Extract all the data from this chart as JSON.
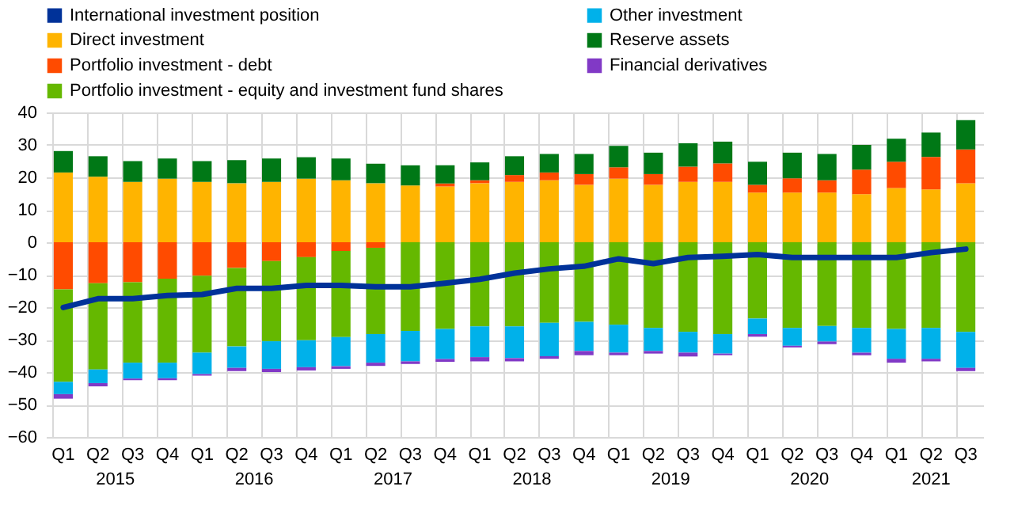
{
  "chart_data": {
    "type": "bar",
    "stacked": true,
    "categories": [
      "Q1",
      "Q2",
      "Q3",
      "Q4",
      "Q1",
      "Q2",
      "Q3",
      "Q4",
      "Q1",
      "Q2",
      "Q3",
      "Q4",
      "Q1",
      "Q2",
      "Q3",
      "Q4",
      "Q1",
      "Q2",
      "Q3",
      "Q4",
      "Q1",
      "Q2",
      "Q3",
      "Q4",
      "Q1",
      "Q2",
      "Q3"
    ],
    "annotations": [
      "2015",
      "2016",
      "2017",
      "2018",
      "2019",
      "2020",
      "2021"
    ],
    "ylim": [
      -60,
      40
    ],
    "yticks": [
      -60,
      -50,
      -40,
      -30,
      -20,
      -10,
      0,
      10,
      20,
      30,
      40
    ],
    "grid": true,
    "legend": "top left",
    "series": [
      {
        "name": "International investment position",
        "type": "line",
        "color": "#003299",
        "values": [
          -20.1,
          -17.4,
          -17.4,
          -16.4,
          -16.1,
          -14.2,
          -14.2,
          -13.3,
          -13.3,
          -13.7,
          -13.7,
          -12.6,
          -11.4,
          -9.5,
          -8.2,
          -7.4,
          -5.1,
          -6.6,
          -4.7,
          -4.3,
          -3.8,
          -4.7,
          -4.7,
          -4.7,
          -4.7,
          -3.2,
          -2.1
        ]
      },
      {
        "name": "Direct investment",
        "color": "#ffb400",
        "values": [
          21.5,
          20.2,
          18.6,
          19.6,
          18.6,
          18.2,
          18.6,
          19.6,
          19.1,
          18.2,
          17.5,
          17.2,
          18.2,
          18.6,
          19.1,
          17.7,
          19.6,
          17.7,
          18.6,
          18.6,
          15.3,
          15.3,
          15.3,
          14.8,
          16.7,
          16.3,
          18.2
        ]
      },
      {
        "name": "Portfolio investment - debt",
        "color": "#ff4b00",
        "values": [
          -14.5,
          -12.6,
          -12.3,
          -11.2,
          -10.3,
          -7.9,
          -5.8,
          -4.6,
          -2.7,
          -1.7,
          0,
          0.9,
          0.9,
          2.1,
          2.4,
          3.3,
          3.5,
          3.3,
          4.7,
          5.7,
          2.4,
          4.4,
          3.8,
          7.6,
          8.1,
          10.0,
          10.4
        ]
      },
      {
        "name": "Portfolio investment - equity and investment fund shares",
        "color": "#65b800",
        "values": [
          -28.5,
          -26.6,
          -24.8,
          -25.9,
          -23.7,
          -24.2,
          -24.7,
          -25.6,
          -26.5,
          -26.6,
          -27.3,
          -26.7,
          -25.9,
          -25.9,
          -24.8,
          -24.5,
          -25.4,
          -26.4,
          -27.6,
          -28.3,
          -23.5,
          -26.4,
          -25.8,
          -26.4,
          -26.7,
          -26.4,
          -27.6
        ]
      },
      {
        "name": "Other investment",
        "color": "#00b1ea",
        "values": [
          -3.8,
          -4.2,
          -4.9,
          -4.8,
          -6.6,
          -6.6,
          -8.5,
          -8.3,
          -9.0,
          -8.8,
          -9.4,
          -9.3,
          -9.5,
          -9.8,
          -10.3,
          -9.0,
          -8.6,
          -7.1,
          -6.4,
          -6.0,
          -4.8,
          -5.5,
          -4.8,
          -7.6,
          -9.2,
          -9.5,
          -11.1
        ]
      },
      {
        "name": "Reserve assets",
        "color": "#007816",
        "values": [
          6.6,
          6.3,
          6.4,
          6.2,
          6.4,
          7.1,
          7.2,
          6.6,
          6.7,
          6.0,
          6.2,
          5.6,
          5.5,
          5.8,
          5.7,
          6.2,
          6.6,
          6.6,
          7.2,
          6.7,
          7.1,
          7.9,
          8.1,
          7.6,
          7.1,
          7.5,
          9.0
        ]
      },
      {
        "name": "Financial derivatives",
        "color": "#8139c6",
        "values": [
          -1.4,
          -1.0,
          -0.5,
          -0.6,
          -0.5,
          -1.0,
          -1.0,
          -1.0,
          -0.8,
          -1.0,
          -0.8,
          -0.8,
          -1.3,
          -1.0,
          -0.8,
          -1.3,
          -0.8,
          -0.8,
          -1.2,
          -0.5,
          -0.8,
          -0.5,
          -0.8,
          -0.8,
          -1.2,
          -0.8,
          -1.0
        ]
      }
    ]
  }
}
